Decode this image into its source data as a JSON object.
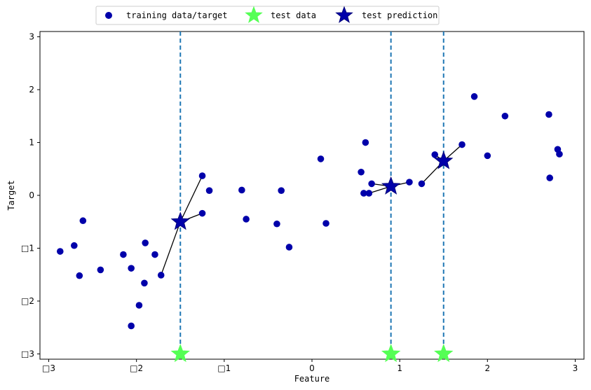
{
  "chart_data": {
    "type": "scatter",
    "title": "",
    "xlabel": "Feature",
    "ylabel": "Target",
    "xlim": [
      -3.1,
      3.1
    ],
    "ylim": [
      -3.1,
      3.1
    ],
    "x_ticks": [
      -3,
      -2,
      -1,
      0,
      1,
      2,
      3
    ],
    "y_ticks": [
      -3,
      -2,
      -1,
      0,
      1,
      2,
      3
    ],
    "x_tick_labels": [
      "□3",
      "□2",
      "□1",
      "0",
      "1",
      "2",
      "3"
    ],
    "y_tick_labels": [
      "□3",
      "□2",
      "□1",
      "0",
      "1",
      "2",
      "3"
    ],
    "grid": false,
    "legend_placement": "top-center",
    "colors": {
      "training": "#0000aa",
      "test_data": "#55ff55",
      "test_prediction": "#0000aa",
      "vline": "#1f77b4",
      "neighbor_line": "#000000"
    },
    "legend": [
      {
        "label": "training data/target",
        "marker": "circle"
      },
      {
        "label": "test data",
        "marker": "star-green"
      },
      {
        "label": "test prediction",
        "marker": "star-blue"
      }
    ],
    "training": [
      {
        "x": -2.87,
        "y": -1.06
      },
      {
        "x": -2.71,
        "y": -0.95
      },
      {
        "x": -2.65,
        "y": -1.52
      },
      {
        "x": -2.61,
        "y": -0.48
      },
      {
        "x": -2.41,
        "y": -1.41
      },
      {
        "x": -2.15,
        "y": -1.12
      },
      {
        "x": -2.06,
        "y": -1.38
      },
      {
        "x": -2.06,
        "y": -2.47
      },
      {
        "x": -1.97,
        "y": -2.08
      },
      {
        "x": -1.91,
        "y": -1.66
      },
      {
        "x": -1.9,
        "y": -0.9
      },
      {
        "x": -1.79,
        "y": -1.12
      },
      {
        "x": -1.72,
        "y": -1.51
      },
      {
        "x": -1.25,
        "y": 0.37
      },
      {
        "x": -1.25,
        "y": -0.34
      },
      {
        "x": -1.17,
        "y": 0.09
      },
      {
        "x": -0.8,
        "y": 0.1
      },
      {
        "x": -0.75,
        "y": -0.45
      },
      {
        "x": -0.4,
        "y": -0.54
      },
      {
        "x": -0.35,
        "y": 0.09
      },
      {
        "x": -0.26,
        "y": -0.98
      },
      {
        "x": 0.1,
        "y": 0.69
      },
      {
        "x": 0.16,
        "y": -0.53
      },
      {
        "x": 0.56,
        "y": 0.44
      },
      {
        "x": 0.59,
        "y": 0.04
      },
      {
        "x": 0.61,
        "y": 1.0
      },
      {
        "x": 0.65,
        "y": 0.04
      },
      {
        "x": 0.68,
        "y": 0.22
      },
      {
        "x": 1.11,
        "y": 0.25
      },
      {
        "x": 1.25,
        "y": 0.22
      },
      {
        "x": 1.4,
        "y": 0.77
      },
      {
        "x": 1.71,
        "y": 0.96
      },
      {
        "x": 1.85,
        "y": 1.87
      },
      {
        "x": 2.0,
        "y": 0.75
      },
      {
        "x": 2.2,
        "y": 1.5
      },
      {
        "x": 2.7,
        "y": 1.53
      },
      {
        "x": 2.71,
        "y": 0.33
      },
      {
        "x": 2.8,
        "y": 0.87
      },
      {
        "x": 2.82,
        "y": 0.78
      }
    ],
    "test_data": [
      {
        "x": -1.5,
        "y": -3
      },
      {
        "x": 0.9,
        "y": -3
      },
      {
        "x": 1.5,
        "y": -3
      }
    ],
    "test_prediction": [
      {
        "x": -1.5,
        "y": -0.5
      },
      {
        "x": 0.9,
        "y": 0.17
      },
      {
        "x": 1.5,
        "y": 0.65
      }
    ],
    "neighbor_lines": [
      {
        "from": [
          -1.5,
          -0.5
        ],
        "to": [
          -1.72,
          -1.51
        ]
      },
      {
        "from": [
          -1.5,
          -0.5
        ],
        "to": [
          -1.25,
          0.37
        ]
      },
      {
        "from": [
          -1.5,
          -0.5
        ],
        "to": [
          -1.25,
          -0.34
        ]
      },
      {
        "from": [
          0.9,
          0.17
        ],
        "to": [
          0.65,
          0.04
        ]
      },
      {
        "from": [
          0.9,
          0.17
        ],
        "to": [
          0.68,
          0.22
        ]
      },
      {
        "from": [
          0.9,
          0.17
        ],
        "to": [
          1.11,
          0.25
        ]
      },
      {
        "from": [
          1.5,
          0.65
        ],
        "to": [
          1.25,
          0.22
        ]
      },
      {
        "from": [
          1.5,
          0.65
        ],
        "to": [
          1.4,
          0.77
        ]
      },
      {
        "from": [
          1.5,
          0.65
        ],
        "to": [
          1.71,
          0.96
        ]
      }
    ],
    "vlines_x": [
      -1.5,
      0.9,
      1.5
    ]
  }
}
